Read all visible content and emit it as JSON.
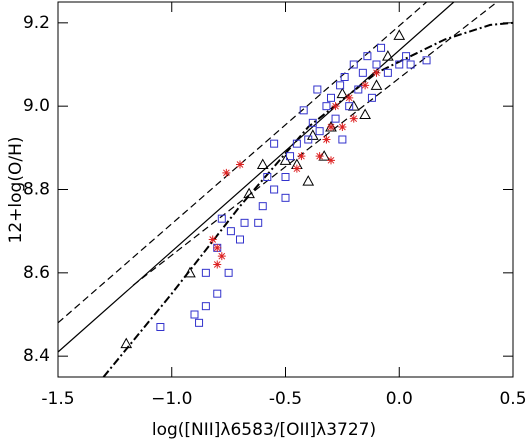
{
  "chart_data": {
    "type": "scatter",
    "xlabel": "log([NII]λ6583/[OII]λ3727)",
    "ylabel": "12+log(O/H)",
    "xlim": [
      -1.5,
      0.5
    ],
    "ylim": [
      8.35,
      9.25
    ],
    "xticks": [
      -1.5,
      {
        "value": -1,
        "label": "−1.0"
      },
      -0.5,
      {
        "value": 0,
        "label": "0.0"
      },
      0.5
    ],
    "yticks": [
      8.4,
      8.6,
      8.8,
      {
        "value": 9,
        "label": "9.0"
      },
      9.2
    ],
    "lines": [
      {
        "dash": "solid",
        "color": "#000000",
        "x": [
          -1.5,
          0.24
        ],
        "y": [
          8.41,
          9.25
        ]
      },
      {
        "dash": "dashed",
        "color": "#000000",
        "x": [
          -1.5,
          0.12
        ],
        "y": [
          8.48,
          9.25
        ]
      },
      {
        "dash": "dashed",
        "color": "#000000",
        "x": [
          -1.17,
          0.43
        ],
        "y": [
          8.57,
          9.25
        ]
      },
      {
        "dash": "dashdot",
        "color": "#000000",
        "x": [
          -1.3,
          -1.0,
          -0.7,
          -0.4,
          -0.1,
          0.2,
          0.4,
          0.5
        ],
        "y": [
          8.35,
          8.55,
          8.76,
          8.95,
          9.08,
          9.16,
          9.195,
          9.2
        ]
      }
    ],
    "series": [
      {
        "marker": "triangle",
        "color": "#000000",
        "x": [
          -1.2,
          -0.92,
          -0.66,
          -0.6,
          -0.45,
          -0.5,
          -0.38,
          -0.3,
          -0.2,
          -0.1,
          -0.05,
          0.0,
          -0.25,
          -0.15,
          -0.33,
          -0.4
        ],
        "values": [
          8.43,
          8.6,
          8.79,
          8.86,
          8.86,
          8.87,
          8.93,
          8.95,
          9.0,
          9.05,
          9.12,
          9.17,
          9.03,
          8.98,
          8.88,
          8.82
        ]
      },
      {
        "marker": "square",
        "color": "#3333cc",
        "x": [
          -1.05,
          -0.9,
          -0.88,
          -0.85,
          -0.8,
          -0.85,
          -0.75,
          -0.8,
          -0.7,
          -0.68,
          -0.74,
          -0.78,
          -0.62,
          -0.6,
          -0.55,
          -0.5,
          -0.48,
          -0.45,
          -0.4,
          -0.38,
          -0.35,
          -0.32,
          -0.3,
          -0.28,
          -0.26,
          -0.24,
          -0.22,
          -0.2,
          -0.18,
          -0.16,
          -0.14,
          -0.1,
          -0.08,
          -0.05,
          0.0,
          0.03,
          0.05,
          0.12,
          -0.36,
          -0.42,
          -0.55,
          -0.58,
          -0.5,
          -0.25,
          -0.12
        ],
        "values": [
          8.47,
          8.5,
          8.48,
          8.52,
          8.55,
          8.6,
          8.6,
          8.66,
          8.68,
          8.72,
          8.7,
          8.73,
          8.72,
          8.76,
          8.8,
          8.83,
          8.88,
          8.91,
          8.92,
          8.96,
          8.94,
          9.0,
          9.02,
          8.97,
          9.05,
          9.07,
          9.0,
          9.1,
          9.04,
          9.08,
          9.12,
          9.1,
          9.14,
          9.08,
          9.1,
          9.12,
          9.1,
          9.11,
          9.04,
          8.99,
          8.91,
          8.83,
          8.78,
          8.92,
          9.02
        ]
      },
      {
        "marker": "asterisk",
        "color": "#dd2222",
        "x": [
          -0.8,
          -0.78,
          -0.8,
          -0.7,
          -0.76,
          -0.82,
          -0.45,
          -0.43,
          -0.35,
          -0.32,
          -0.3,
          -0.28,
          -0.25,
          -0.22,
          -0.2,
          -0.15,
          -0.1,
          -0.3
        ],
        "values": [
          8.62,
          8.64,
          8.66,
          8.86,
          8.84,
          8.68,
          8.85,
          8.88,
          8.88,
          8.92,
          8.95,
          9.0,
          8.95,
          9.02,
          8.97,
          9.05,
          9.08,
          8.87
        ]
      }
    ]
  }
}
